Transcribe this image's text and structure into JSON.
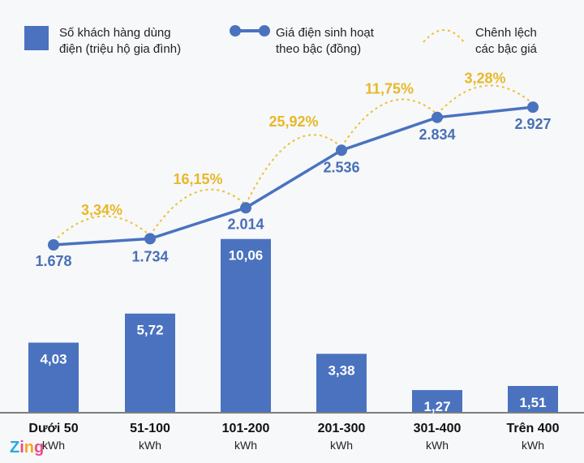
{
  "chart_data": {
    "type": "bar+line",
    "categories": [
      {
        "label": "Dưới 50",
        "unit": "kWh"
      },
      {
        "label": "51-100",
        "unit": "kWh"
      },
      {
        "label": "101-200",
        "unit": "kWh"
      },
      {
        "label": "201-300",
        "unit": "kWh"
      },
      {
        "label": "301-400",
        "unit": "kWh"
      },
      {
        "label": "Trên 400",
        "unit": "kWh"
      }
    ],
    "series": [
      {
        "name": "Số khách hàng dùng điện (triệu hộ gia đình)",
        "type": "bar",
        "values": [
          4.03,
          5.72,
          10.06,
          3.38,
          1.27,
          1.51
        ],
        "labels": [
          "4,03",
          "5,72",
          "10,06",
          "3,38",
          "1,27",
          "1,51"
        ]
      },
      {
        "name": "Giá điện sinh hoạt theo bậc (đồng)",
        "type": "line",
        "values": [
          1678,
          1734,
          2014,
          2536,
          2834,
          2927
        ],
        "labels": [
          "1.678",
          "1.734",
          "2.014",
          "2.536",
          "2.834",
          "2.927"
        ]
      },
      {
        "name": "Chênh lệch các bậc giá",
        "type": "arc",
        "labels": [
          "3,34%",
          "16,15%",
          "25,92%",
          "11,75%",
          "3,28%"
        ]
      }
    ],
    "legend": {
      "position": "top",
      "items": [
        {
          "lines": [
            "Số khách hàng dùng",
            "điện (triệu hộ gia đình)"
          ]
        },
        {
          "lines": [
            "Giá điện sinh hoạt",
            "theo bậc (đồng)"
          ]
        },
        {
          "lines": [
            "Chênh lệch",
            "các bậc giá"
          ]
        }
      ]
    },
    "colors": {
      "bar": "#4a72bf",
      "line": "#4a72bf",
      "arc": "#f0c030"
    },
    "grid": false
  },
  "watermark": "Zing"
}
